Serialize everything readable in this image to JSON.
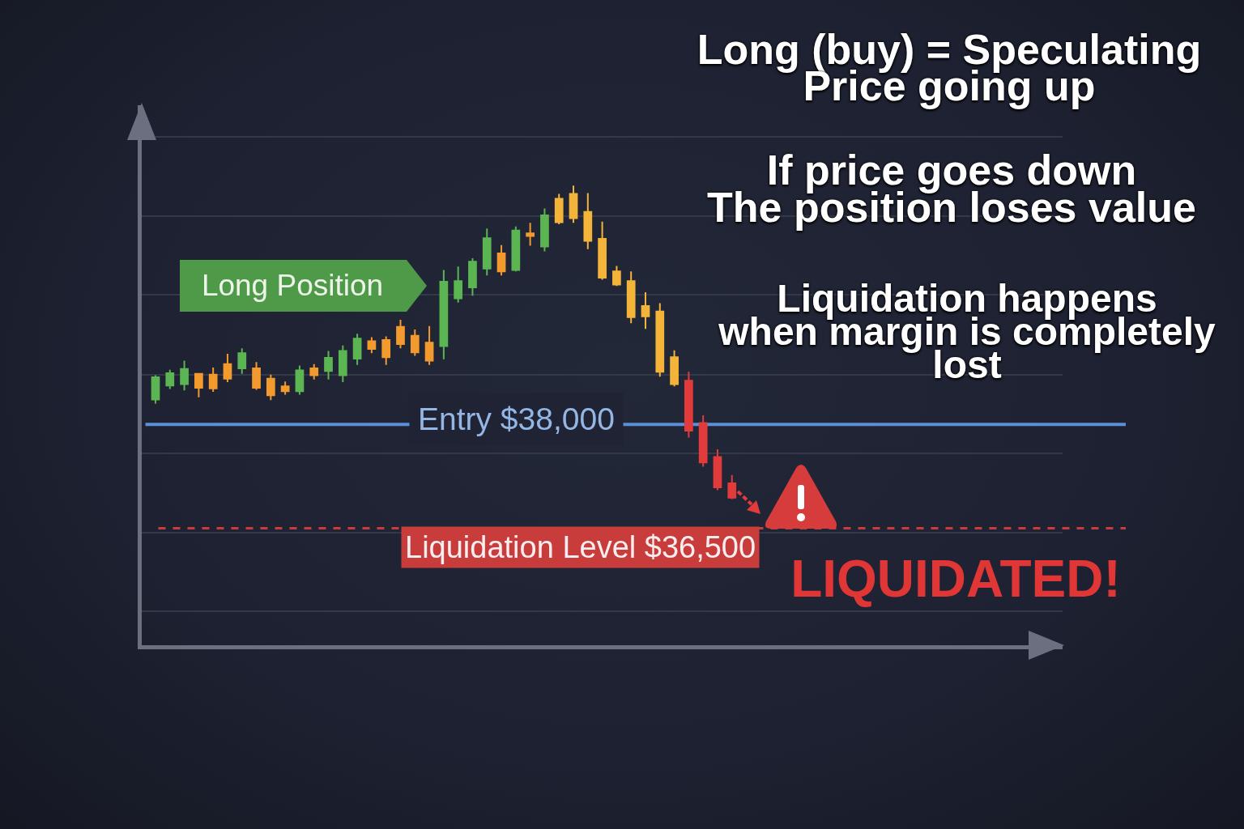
{
  "chart_data": {
    "type": "candlestick",
    "categories": [
      null,
      null,
      null,
      null,
      null,
      null,
      null,
      null,
      null,
      null,
      null,
      null,
      null,
      null,
      null,
      null,
      null,
      null,
      null,
      null,
      null,
      null,
      null,
      null,
      null,
      null,
      null,
      null,
      null,
      null,
      null,
      null,
      null,
      null,
      null,
      null,
      null,
      null,
      null,
      null,
      null
    ],
    "ohlc": [
      [
        38360,
        38710,
        38300,
        38680
      ],
      [
        38560,
        38790,
        38510,
        38740
      ],
      [
        38580,
        38920,
        38490,
        38800
      ],
      [
        38730,
        38740,
        38390,
        38530
      ],
      [
        38720,
        38820,
        38470,
        38520
      ],
      [
        38870,
        39020,
        38610,
        38660
      ],
      [
        38810,
        39100,
        38730,
        39030
      ],
      [
        38810,
        38900,
        38500,
        38530
      ],
      [
        38660,
        38720,
        38350,
        38420
      ],
      [
        38550,
        38620,
        38430,
        38480
      ],
      [
        38480,
        38850,
        38430,
        38780
      ],
      [
        38810,
        38870,
        38650,
        38710
      ],
      [
        38770,
        39060,
        38650,
        38960
      ],
      [
        38710,
        39140,
        38610,
        39060
      ],
      [
        38950,
        39310,
        38860,
        39240
      ],
      [
        39200,
        39260,
        39030,
        39090
      ],
      [
        39220,
        39270,
        38860,
        38970
      ],
      [
        39410,
        39510,
        39100,
        39160
      ],
      [
        39280,
        39370,
        38990,
        39040
      ],
      [
        39180,
        39420,
        38860,
        38920
      ],
      [
        39130,
        40230,
        38940,
        40060
      ],
      [
        39820,
        40280,
        39760,
        40070
      ],
      [
        39980,
        40400,
        39860,
        40350
      ],
      [
        40250,
        40830,
        40150,
        40690
      ],
      [
        40470,
        40590,
        40150,
        40210
      ],
      [
        40230,
        40860,
        40210,
        40800
      ],
      [
        40760,
        40910,
        40580,
        40720
      ],
      [
        40570,
        41120,
        40500,
        41020
      ],
      [
        41260,
        41330,
        40890,
        40920
      ],
      [
        41330,
        41450,
        40910,
        40980
      ],
      [
        41070,
        41340,
        40530,
        40650
      ],
      [
        40680,
        40930,
        40090,
        40120
      ],
      [
        40210,
        40290,
        40000,
        40020
      ],
      [
        40070,
        40210,
        39460,
        39550
      ],
      [
        39710,
        39910,
        39380,
        39560
      ],
      [
        39630,
        39750,
        38690,
        38760
      ],
      [
        38970,
        39070,
        38550,
        38580
      ],
      [
        38630,
        38760,
        37810,
        37910
      ],
      [
        38020,
        38130,
        37390,
        37450
      ],
      [
        37530,
        37640,
        37050,
        37090
      ],
      [
        37150,
        37270,
        36920,
        36940
      ]
    ],
    "colors": [
      "#5bb552",
      "#5bb552",
      "#5bb552",
      "#f39a2e",
      "#f39a2e",
      "#f39a2e",
      "#5bb552",
      "#f39a2e",
      "#f39a2e",
      "#f39a2e",
      "#5bb552",
      "#f39a2e",
      "#5bb552",
      "#5bb552",
      "#5bb552",
      "#f39a2e",
      "#f39a2e",
      "#f39a2e",
      "#f39a2e",
      "#f39a2e",
      "#5bb552",
      "#5bb552",
      "#5bb552",
      "#5bb552",
      "#f39a2e",
      "#5bb552",
      "#f39a2e",
      "#5bb552",
      "#f4b43a",
      "#f4b43a",
      "#f4b43a",
      "#f4b43a",
      "#f4b43a",
      "#f4b43a",
      "#f4b43a",
      "#f4b43a",
      "#f4b43a",
      "#e23b3b",
      "#e23b3b",
      "#e23b3b",
      "#e23b3b"
    ],
    "ylim": [
      34810,
      42610
    ],
    "yticks": [
      {
        "value": 35300,
        "label": null
      },
      {
        "value": 36440,
        "label": null
      },
      {
        "value": 37580,
        "label": null
      },
      {
        "value": 38720,
        "label": null
      },
      {
        "value": 39870,
        "label": null
      },
      {
        "value": 41010,
        "label": null
      },
      {
        "value": 42150,
        "label": null
      }
    ],
    "grid": "y",
    "ref_lines": [
      {
        "axis": "y",
        "value": 38000,
        "label": "Entry $38,000",
        "color": "#5b8fd6",
        "line_style": "solid"
      },
      {
        "axis": "y",
        "value": 36500,
        "label": "Liquidation Level $36,500",
        "color": "#c93c3c",
        "line_style": "dashed"
      }
    ],
    "annotations": [
      "Long (buy) = Speculating\nPrice going up",
      "If price goes down\nThe position loses value",
      "Liquidation happens\nwhen margin is completely\nlost",
      "Long Position",
      "LIQUIDATED!"
    ]
  }
}
